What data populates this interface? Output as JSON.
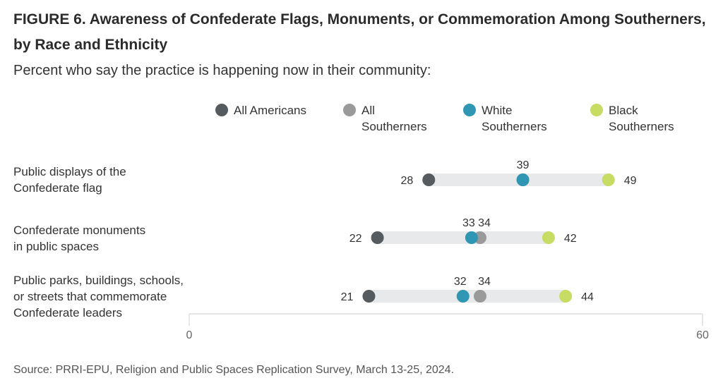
{
  "title": "FIGURE 6. Awareness of Confederate Flags, Monuments, or Commemoration Among Southerners, by Race and Ethnicity",
  "subtitle": "Percent who say the practice is happening now in their community:",
  "source": "Source: PRRI-EPU, Religion and Public Spaces Replication Survey, March 13-25, 2024.",
  "colors": {
    "all_americans": "#555b5e",
    "all_southerners": "#9a9a9a",
    "white_southerners": "#2f96b4",
    "black_southerners": "#c6dc63",
    "range_bar": "#e8e9ea",
    "axis": "#cccccc"
  },
  "legend": [
    {
      "label": "All Americans"
    },
    {
      "label": "All\nSoutherners"
    },
    {
      "label": "White\nSoutherners"
    },
    {
      "label": "Black\nSoutherners"
    }
  ],
  "chart_data": {
    "type": "dot",
    "categories": [
      "Public displays of the\nConfederate flag",
      "Confederate monuments\nin public spaces",
      "Public parks, buildings, schools,\nor streets that commemorate\nConfederate leaders"
    ],
    "series": [
      {
        "name": "All Americans",
        "values": [
          28,
          22,
          21
        ]
      },
      {
        "name": "All Southerners",
        "values": [
          39,
          34,
          34
        ]
      },
      {
        "name": "White Southerners",
        "values": [
          39,
          33,
          32
        ]
      },
      {
        "name": "Black Southerners",
        "values": [
          49,
          42,
          44
        ]
      }
    ],
    "xlim": [
      0,
      60
    ],
    "xticks": [
      "0",
      "60"
    ],
    "grid": false
  }
}
